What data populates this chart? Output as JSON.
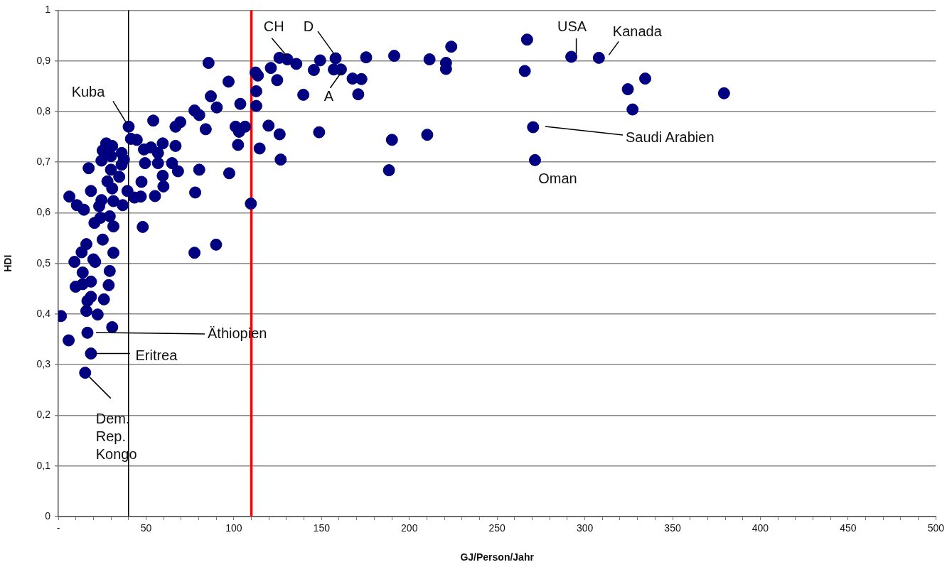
{
  "chart_data": {
    "type": "scatter",
    "xlabel": "GJ/Person/Jahr",
    "ylabel": "HDI",
    "color": "#000080",
    "marker": "circle",
    "grid": "y",
    "xlim": [
      0,
      500
    ],
    "ylim": [
      0,
      1
    ],
    "xticks": [
      {
        "value": 0,
        "label": "-"
      },
      {
        "value": 10,
        "label": null
      },
      {
        "value": 20,
        "label": null
      },
      {
        "value": 30,
        "label": null
      },
      {
        "value": 40,
        "label": null
      },
      50,
      {
        "value": 60,
        "label": null
      },
      {
        "value": 70,
        "label": null
      },
      {
        "value": 80,
        "label": null
      },
      {
        "value": 90,
        "label": null
      },
      100,
      {
        "value": 110,
        "label": null
      },
      {
        "value": 120,
        "label": null
      },
      {
        "value": 130,
        "label": null
      },
      {
        "value": 140,
        "label": null
      },
      150,
      {
        "value": 160,
        "label": null
      },
      {
        "value": 170,
        "label": null
      },
      {
        "value": 180,
        "label": null
      },
      {
        "value": 190,
        "label": null
      },
      200,
      {
        "value": 210,
        "label": null
      },
      {
        "value": 220,
        "label": null
      },
      {
        "value": 230,
        "label": null
      },
      {
        "value": 240,
        "label": null
      },
      250,
      {
        "value": 260,
        "label": null
      },
      {
        "value": 270,
        "label": null
      },
      {
        "value": 280,
        "label": null
      },
      {
        "value": 290,
        "label": null
      },
      300,
      {
        "value": 310,
        "label": null
      },
      {
        "value": 320,
        "label": null
      },
      {
        "value": 330,
        "label": null
      },
      {
        "value": 340,
        "label": null
      },
      350,
      {
        "value": 360,
        "label": null
      },
      {
        "value": 370,
        "label": null
      },
      {
        "value": 380,
        "label": null
      },
      {
        "value": 390,
        "label": null
      },
      400,
      {
        "value": 410,
        "label": null
      },
      {
        "value": 420,
        "label": null
      },
      {
        "value": 430,
        "label": null
      },
      {
        "value": 440,
        "label": null
      },
      450,
      {
        "value": 460,
        "label": null
      },
      {
        "value": 470,
        "label": null
      },
      {
        "value": 480,
        "label": null
      },
      {
        "value": 490,
        "label": null
      },
      500
    ],
    "yticks": [
      0,
      {
        "value": 0.1,
        "label": "0,1"
      },
      {
        "value": 0.2,
        "label": "0,2"
      },
      {
        "value": 0.3,
        "label": "0,3"
      },
      {
        "value": 0.4,
        "label": "0,4"
      },
      {
        "value": 0.5,
        "label": "0,5"
      },
      {
        "value": 0.6,
        "label": "0,6"
      },
      {
        "value": 0.7,
        "label": "0,7"
      },
      {
        "value": 0.8,
        "label": "0,8"
      },
      {
        "value": 0.9,
        "label": "0,9"
      },
      1
    ],
    "x": [
      16.0,
      25.3,
      13.3,
      31.4,
      9.2,
      20.0,
      21.0,
      13.9,
      29.3,
      9.9,
      13.9,
      18.6,
      28.7,
      18.6,
      16.6,
      26.0,
      16.0,
      22.4,
      1.5,
      30.7,
      16.6,
      5.9,
      18.6,
      15.3,
      40.1,
      54.1,
      66.8,
      69.5,
      77.6,
      80.3,
      90.3,
      84.0,
      101.0,
      103.0,
      106.4,
      102.4,
      114.7,
      41.4,
      44.7,
      27.3,
      30.7,
      25.3,
      36.1,
      48.8,
      52.8,
      59.5,
      66.8,
      56.8,
      24.6,
      30.0,
      37.4,
      49.4,
      56.8,
      64.8,
      68.2,
      80.3,
      97.4,
      17.3,
      30.0,
      36.1,
      34.7,
      28.0,
      30.7,
      47.4,
      59.5,
      59.9,
      18.6,
      6.3,
      10.6,
      14.6,
      24.6,
      23.3,
      31.4,
      36.7,
      39.4,
      43.4,
      47.0,
      55.1,
      78.0,
      109.7,
      20.6,
      24.0,
      29.3,
      31.4,
      48.1,
      77.6,
      89.9,
      85.6,
      97.0,
      86.9,
      103.7,
      112.4,
      113.7,
      121.1,
      126.0,
      130.5,
      135.6,
      124.7,
      112.8,
      112.8,
      119.8,
      126.1,
      126.7,
      139.6,
      145.6,
      149.2,
      148.6,
      158.0,
      157.0,
      161.0,
      167.7,
      172.7,
      170.9,
      175.4,
      191.4,
      190.1,
      188.4,
      211.5,
      220.9,
      220.9,
      223.9,
      267.1,
      265.8,
      292.3,
      308.0,
      324.5,
      334.4,
      327.2,
      379.3,
      210.2,
      270.5,
      271.6
    ],
    "values": [
      0.538,
      0.547,
      0.522,
      0.521,
      0.503,
      0.508,
      0.503,
      0.482,
      0.485,
      0.454,
      0.459,
      0.464,
      0.457,
      0.434,
      0.426,
      0.429,
      0.406,
      0.399,
      0.396,
      0.374,
      0.363,
      0.348,
      0.322,
      0.284,
      0.77,
      0.782,
      0.77,
      0.779,
      0.802,
      0.793,
      0.808,
      0.765,
      0.77,
      0.76,
      0.77,
      0.734,
      0.727,
      0.746,
      0.744,
      0.737,
      0.732,
      0.723,
      0.718,
      0.725,
      0.729,
      0.737,
      0.732,
      0.718,
      0.703,
      0.712,
      0.705,
      0.698,
      0.698,
      0.698,
      0.682,
      0.685,
      0.678,
      0.688,
      0.685,
      0.695,
      0.671,
      0.662,
      0.648,
      0.661,
      0.673,
      0.652,
      0.643,
      0.632,
      0.615,
      0.606,
      0.625,
      0.613,
      0.623,
      0.615,
      0.643,
      0.63,
      0.632,
      0.633,
      0.64,
      0.618,
      0.58,
      0.59,
      0.593,
      0.573,
      0.572,
      0.521,
      0.537,
      0.896,
      0.859,
      0.83,
      0.815,
      0.877,
      0.871,
      0.886,
      0.906,
      0.903,
      0.894,
      0.862,
      0.84,
      0.811,
      0.772,
      0.755,
      0.705,
      0.833,
      0.882,
      0.901,
      0.759,
      0.905,
      0.883,
      0.883,
      0.865,
      0.864,
      0.834,
      0.907,
      0.91,
      0.744,
      0.684,
      0.903,
      0.896,
      0.884,
      0.928,
      0.942,
      0.88,
      0.908,
      0.906,
      0.844,
      0.865,
      0.804,
      0.836,
      0.754,
      0.769,
      0.704
    ],
    "ref_lines": [
      {
        "axis": "x",
        "value": 40,
        "color": "#000000"
      },
      {
        "axis": "x",
        "value": 110,
        "color": "#ff0000"
      }
    ],
    "annotations": [
      {
        "text": "Kuba",
        "x": 40.1,
        "y": 0.77
      },
      {
        "text": "CH",
        "x": 130.5,
        "y": 0.903
      },
      {
        "text": "D",
        "x": 158.0,
        "y": 0.905
      },
      {
        "text": "A",
        "x": 161.0,
        "y": 0.883
      },
      {
        "text": "USA",
        "x": 292.3,
        "y": 0.908
      },
      {
        "text": "Kanada",
        "x": 308.0,
        "y": 0.906
      },
      "Saudi Arabien",
      {
        "text": "Oman",
        "x": 271.6,
        "y": 0.704
      },
      "Äthiopien",
      {
        "text": "Eritrea",
        "x": 18.6,
        "y": 0.322
      },
      {
        "text": "Dem.\nRep.\nKongo",
        "x": 15.3,
        "y": 0.284
      }
    ]
  }
}
